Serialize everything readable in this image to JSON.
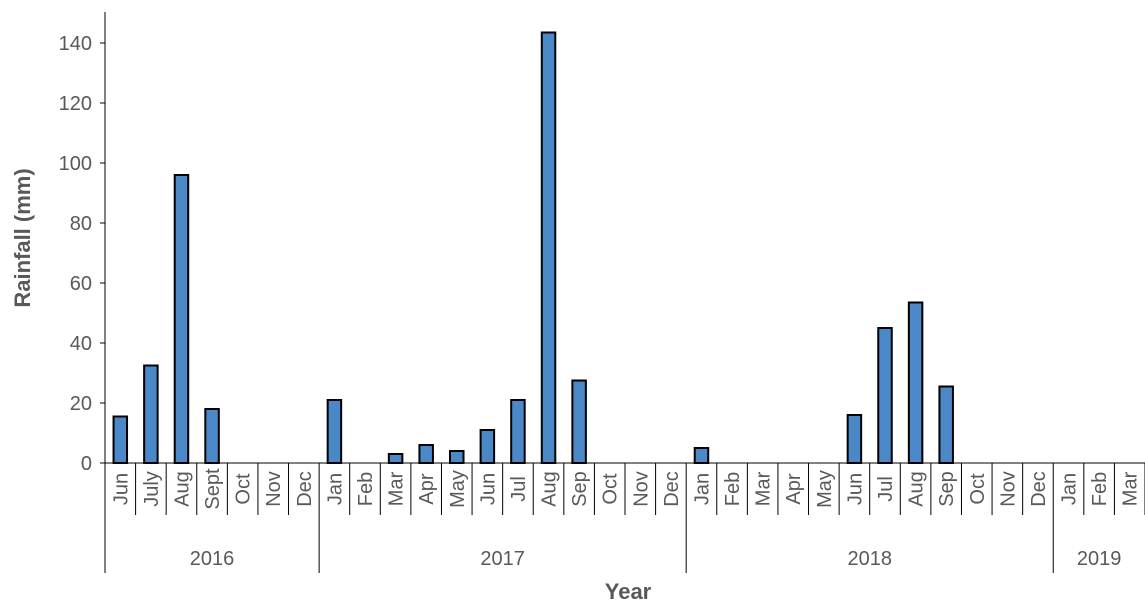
{
  "chart_data": {
    "type": "bar",
    "title": "",
    "xlabel": "Year",
    "ylabel": "Rainfall (mm)",
    "ylim": [
      0,
      150
    ],
    "yticks": [
      0,
      20,
      40,
      60,
      80,
      100,
      120,
      140
    ],
    "grid": false,
    "legend": "none",
    "colors": {
      "bar_fill": "#4a88c8",
      "bar_stroke": "#000000",
      "text": "#595959",
      "axis": "#000000"
    },
    "categories": [
      "Jun",
      "July",
      "Aug",
      "Sept",
      "Oct",
      "Nov",
      "Dec",
      "Jan",
      "Feb",
      "Mar",
      "Apr",
      "May",
      "Jun",
      "Jul",
      "Aug",
      "Sep",
      "Oct",
      "Nov",
      "Dec",
      "Jan",
      "Feb",
      "Mar",
      "Apr",
      "May",
      "Jun",
      "Jul",
      "Aug",
      "Sep",
      "Oct",
      "Nov",
      "Dec",
      "Jan",
      "Feb",
      "Mar"
    ],
    "values": [
      15.5,
      32.5,
      96,
      18,
      0,
      0,
      0,
      21,
      0,
      3,
      6,
      4,
      11,
      21,
      143.5,
      27.5,
      0,
      0,
      0,
      5,
      0,
      0,
      0,
      0,
      16,
      45,
      53.5,
      25.5,
      0,
      0,
      0,
      0,
      0,
      0
    ],
    "groups": [
      {
        "label": "2016",
        "count": 7
      },
      {
        "label": "2017",
        "count": 12
      },
      {
        "label": "2018",
        "count": 12
      },
      {
        "label": "2019",
        "count": 3
      }
    ]
  }
}
